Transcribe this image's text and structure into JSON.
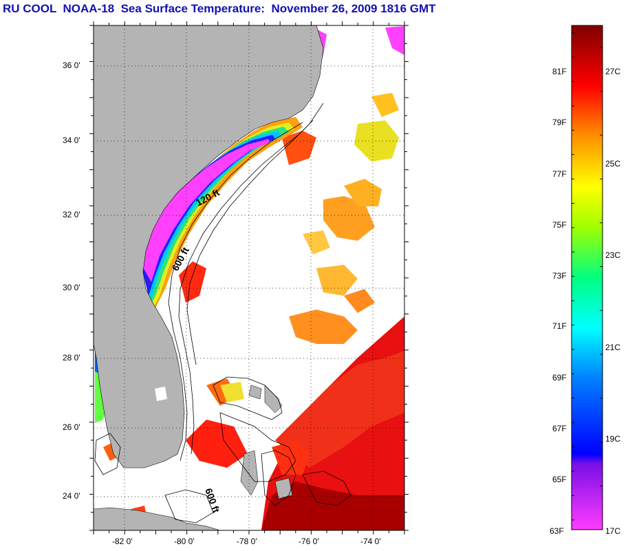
{
  "title": "RU COOL  NOAA-18  Sea Surface Temperature:  November 26, 2009 1816 GMT",
  "map": {
    "lat_labels": [
      "36 0'",
      "34 0'",
      "32 0'",
      "30 0'",
      "28 0'",
      "26 0'",
      "24 0'"
    ],
    "lon_labels": [
      "-82 0'",
      "-80 0'",
      "-78 0'",
      "-76 0'",
      "-74 0'"
    ],
    "lat_values": [
      36,
      34,
      32,
      30,
      28,
      26,
      24
    ],
    "lon_values": [
      -82,
      -80,
      -78,
      -76,
      -74
    ],
    "lat_range": [
      23.0,
      37.0
    ],
    "lon_range": [
      -83.0,
      -73.0
    ],
    "contour_labels": [
      "120 ft",
      "600 ft",
      "600 ft"
    ],
    "land_color": "#b4b4b4"
  },
  "colorbar": {
    "fahrenheit_labels": [
      "81F",
      "79F",
      "77F",
      "75F",
      "73F",
      "71F",
      "69F",
      "67F",
      "65F",
      "63F"
    ],
    "celsius_labels": [
      "27C",
      "25C",
      "23C",
      "21C",
      "19C",
      "17C"
    ],
    "range_c": [
      17,
      28.5
    ],
    "colors": [
      "#ff40ff",
      "#8000ff",
      "#0000ff",
      "#0080ff",
      "#00ffff",
      "#00ff80",
      "#80ff00",
      "#ffff00",
      "#ff8000",
      "#ff0000",
      "#800000"
    ]
  }
}
